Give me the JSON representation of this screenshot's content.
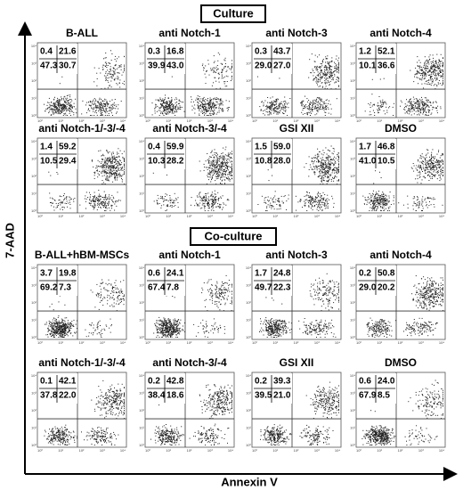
{
  "y_axis_label": "7-AAD",
  "x_axis_label": "Annexin V",
  "axis_decades": [
    "10⁰",
    "10¹",
    "10²",
    "10³",
    "10⁴"
  ],
  "sections": [
    {
      "title": "Culture",
      "panels": [
        {
          "title": "B-ALL",
          "quadrants": [
            [
              "0.4",
              "21.6"
            ],
            [
              "47.3",
              "30.7"
            ]
          ]
        },
        {
          "title": "anti Notch-1",
          "quadrants": [
            [
              "0.3",
              "16.8"
            ],
            [
              "39.9",
              "43.0"
            ]
          ]
        },
        {
          "title": "anti Notch-3",
          "quadrants": [
            [
              "0.3",
              "43.7"
            ],
            [
              "29.0",
              "27.0"
            ]
          ]
        },
        {
          "title": "anti Notch-4",
          "quadrants": [
            [
              "1.2",
              "52.1"
            ],
            [
              "10.1",
              "36.6"
            ]
          ]
        },
        {
          "title": "anti Notch-1/-3/-4",
          "quadrants": [
            [
              "1.4",
              "59.2"
            ],
            [
              "10.5",
              "29.4"
            ]
          ]
        },
        {
          "title": "anti Notch-3/-4",
          "quadrants": [
            [
              "0.4",
              "59.9"
            ],
            [
              "10.3",
              "28.2"
            ]
          ]
        },
        {
          "title": "GSI XII",
          "quadrants": [
            [
              "1.5",
              "59.0"
            ],
            [
              "10.8",
              "28.0"
            ]
          ]
        },
        {
          "title": "DMSO",
          "quadrants": [
            [
              "1.7",
              "46.8"
            ],
            [
              "41.0",
              "10.5"
            ]
          ]
        }
      ]
    },
    {
      "title": "Co-culture",
      "panels": [
        {
          "title": "B-ALL+hBM-MSCs",
          "quadrants": [
            [
              "3.7",
              "19.8"
            ],
            [
              "69.2",
              "7.3"
            ]
          ]
        },
        {
          "title": "anti Notch-1",
          "quadrants": [
            [
              "0.6",
              "24.1"
            ],
            [
              "67.4",
              "7.8"
            ]
          ]
        },
        {
          "title": "anti Notch-3",
          "quadrants": [
            [
              "1.7",
              "24.8"
            ],
            [
              "49.7",
              "22.3"
            ]
          ]
        },
        {
          "title": "anti Notch-4",
          "quadrants": [
            [
              "0.2",
              "50.8"
            ],
            [
              "29.0",
              "20.2"
            ]
          ]
        },
        {
          "title": "anti Notch-1/-3/-4",
          "quadrants": [
            [
              "0.1",
              "42.1"
            ],
            [
              "37.8",
              "22.0"
            ]
          ]
        },
        {
          "title": "anti Notch-3/-4",
          "quadrants": [
            [
              "0.2",
              "42.8"
            ],
            [
              "38.4",
              "18.6"
            ]
          ]
        },
        {
          "title": "GSI XII",
          "quadrants": [
            [
              "0.2",
              "39.3"
            ],
            [
              "39.5",
              "21.0"
            ]
          ]
        },
        {
          "title": "DMSO",
          "quadrants": [
            [
              "0.6",
              "24.0"
            ],
            [
              "67.9",
              "8.5"
            ]
          ]
        }
      ]
    }
  ]
}
